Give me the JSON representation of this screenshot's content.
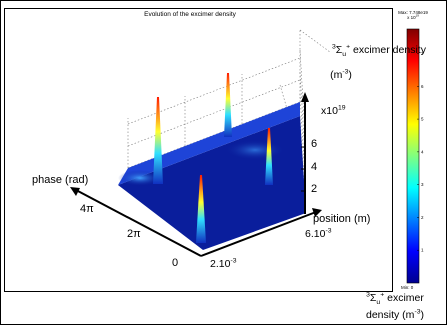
{
  "chart_data": {
    "type": "surface3d",
    "title": "Evolution of the excimer density",
    "z_label": "excimer density",
    "z_label_prefix": "3",
    "z_label_sigma": "Σ",
    "z_label_sub": "u",
    "z_label_sup": "+",
    "z_unit": "(m-3)",
    "z_multiplier": "x10",
    "z_multiplier_exp": "19",
    "z_ticks": [
      "2",
      "4",
      "6"
    ],
    "y_label": "phase (rad)",
    "y_ticks": [
      "0",
      "2π",
      "4π"
    ],
    "x_label": "position (m)",
    "x_ticks": [
      "2.10-3",
      "6.10-3"
    ],
    "x_tick_parts": [
      {
        "base": "2.10",
        "exp": "-3"
      },
      {
        "base": "6.10",
        "exp": "-3"
      }
    ],
    "colorbar": {
      "max_label": "Max: 7.748e19",
      "max_sub": "x 10",
      "max_sub_exp": "19",
      "min_label": "Min: 0",
      "ticks": [
        "1",
        "2",
        "3",
        "4",
        "5",
        "6",
        "7"
      ],
      "label_line1": "excimer",
      "label_line2": "density",
      "label_unit": "(m-3)",
      "colormap": "jet",
      "range": [
        0,
        7.748
      ]
    },
    "colors": {
      "base": "#0a1e9c",
      "peak": "#ff1a00"
    }
  }
}
